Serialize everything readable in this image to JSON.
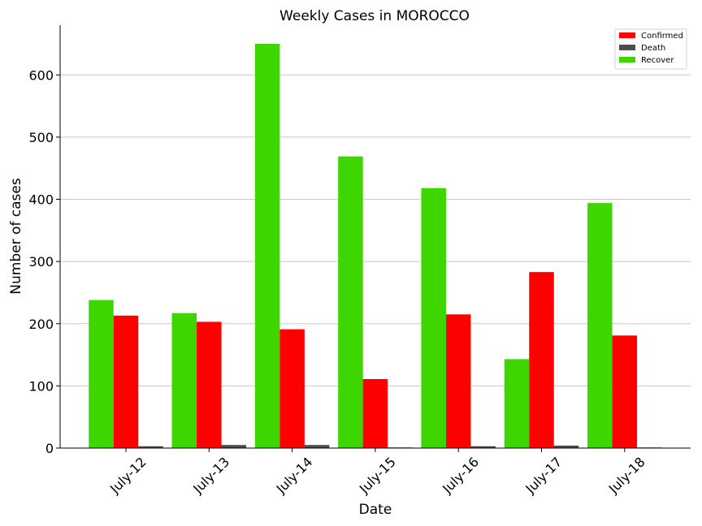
{
  "chart_data": {
    "type": "bar",
    "title": "Weekly Cases in MOROCCO",
    "xlabel": "Date",
    "ylabel": "Number of cases",
    "categories": [
      "July-12",
      "July-13",
      "July-14",
      "July-15",
      "July-16",
      "July-17",
      "July-18"
    ],
    "series": [
      {
        "name": "Recover",
        "color": "#3dd600",
        "values": [
          238,
          217,
          650,
          469,
          418,
          143,
          394
        ]
      },
      {
        "name": "Confirmed",
        "color": "#ff0000",
        "values": [
          213,
          203,
          191,
          111,
          215,
          283,
          181
        ]
      },
      {
        "name": "Death",
        "color": "#4d4d4d",
        "values": [
          3,
          5,
          5,
          1,
          3,
          4,
          1
        ]
      }
    ],
    "legend_order": [
      "Confirmed",
      "Death",
      "Recover"
    ],
    "legend_position": "top-right",
    "ylim": [
      0,
      680
    ],
    "yticks": [
      0,
      100,
      200,
      300,
      400,
      500,
      600
    ],
    "grid": "horizontal"
  }
}
